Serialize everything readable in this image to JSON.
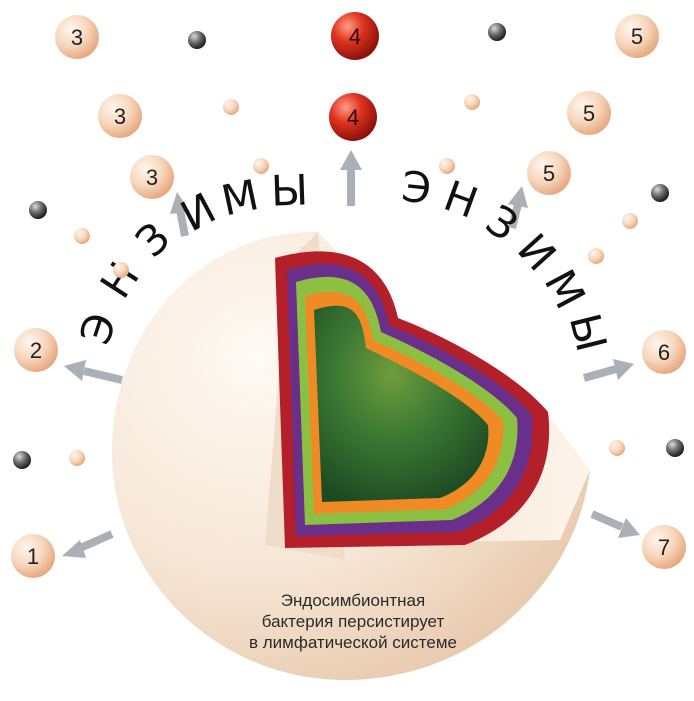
{
  "diagram": {
    "enzymes_word": "ЭНЗИМЫ",
    "numbers": [
      "1",
      "2",
      "3",
      "3",
      "3",
      "4",
      "4",
      "5",
      "5",
      "5",
      "6",
      "7"
    ],
    "caption": {
      "line1": "Эндосимбионтная",
      "line2": "бактерия персистирует",
      "line3": "в лимфатической системе"
    },
    "colors": {
      "cream_ball": "#f2c9a8",
      "red_ball": "#d8291c",
      "gray_dot": "#444444",
      "arrow": "#a9b0b6",
      "shell": "#f6e7d8",
      "layer_red": "#b3202a",
      "layer_purple": "#6a2f8a",
      "layer_lightgreen": "#8cc043",
      "layer_orange": "#f08a24",
      "core_green": "#2f6b2e"
    }
  }
}
